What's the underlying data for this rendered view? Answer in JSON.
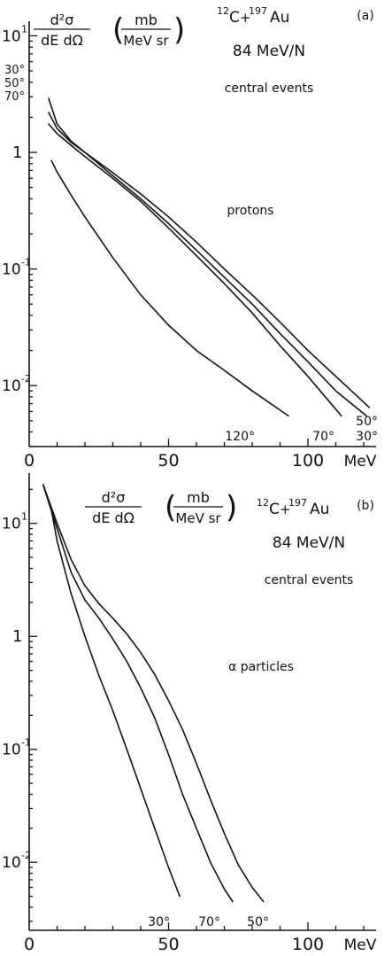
{
  "chart_data": [
    {
      "panel": "(a)",
      "type": "line",
      "y_scale": "log",
      "ylim": [
        0.003,
        12
      ],
      "xlim": [
        0,
        125
      ],
      "x_ticks": [
        "0",
        "50",
        "100"
      ],
      "x_tick_values": [
        0,
        50,
        100
      ],
      "x_unit": "MeV",
      "y_ticks": [
        {
          "value": 10,
          "base": "10",
          "exp": "1"
        },
        {
          "value": 1,
          "base": "1",
          "exp": ""
        },
        {
          "value": 0.1,
          "base": "10",
          "exp": "-1"
        },
        {
          "value": 0.01,
          "base": "10",
          "exp": "-2"
        }
      ],
      "ylabel": {
        "num": "d²σ",
        "den": "dE dΩ",
        "unit_num": "mb",
        "unit_den": "MeV sr"
      },
      "reaction": {
        "a_left": "12",
        "p1": "C",
        "plus": "+",
        "a_right": "197",
        "p2": "Au"
      },
      "energy": "84 MeV/N",
      "selection": "central events",
      "particle": "protons",
      "series": [
        {
          "name": "30°",
          "x": [
            7,
            10,
            15,
            20,
            30,
            40,
            50,
            60,
            70,
            80,
            90,
            100,
            110,
            121
          ],
          "y": [
            2.9,
            1.75,
            1.25,
            1.0,
            0.63,
            0.4,
            0.245,
            0.145,
            0.085,
            0.05,
            0.028,
            0.016,
            0.009,
            0.0055
          ]
        },
        {
          "name": "50°",
          "x": [
            7,
            10,
            15,
            20,
            30,
            40,
            50,
            60,
            70,
            80,
            90,
            100,
            110,
            122
          ],
          "y": [
            2.2,
            1.6,
            1.22,
            1.0,
            0.67,
            0.44,
            0.28,
            0.17,
            0.1,
            0.06,
            0.035,
            0.02,
            0.012,
            0.0065
          ]
        },
        {
          "name": "70°",
          "x": [
            7,
            10,
            15,
            20,
            30,
            40,
            50,
            60,
            70,
            80,
            90,
            100,
            112
          ],
          "y": [
            1.75,
            1.45,
            1.15,
            0.92,
            0.6,
            0.38,
            0.225,
            0.13,
            0.075,
            0.042,
            0.022,
            0.012,
            0.0055
          ]
        },
        {
          "name": "120°",
          "x": [
            8,
            10,
            15,
            20,
            30,
            40,
            50,
            60,
            70,
            80,
            93
          ],
          "y": [
            0.85,
            0.68,
            0.43,
            0.28,
            0.125,
            0.06,
            0.033,
            0.02,
            0.0135,
            0.009,
            0.0055
          ]
        }
      ]
    },
    {
      "panel": "(b)",
      "type": "line",
      "y_scale": "log",
      "ylim": [
        0.0025,
        25
      ],
      "xlim": [
        0,
        125
      ],
      "x_ticks": [
        "0",
        "50",
        "100"
      ],
      "x_tick_values": [
        0,
        50,
        100
      ],
      "x_unit": "MeV",
      "y_ticks": [
        {
          "value": 10,
          "base": "10",
          "exp": "1"
        },
        {
          "value": 1,
          "base": "1",
          "exp": ""
        },
        {
          "value": 0.1,
          "base": "10",
          "exp": "-1"
        },
        {
          "value": 0.01,
          "base": "10",
          "exp": "-2"
        }
      ],
      "ylabel": {
        "num": "d²σ",
        "den": "dE dΩ",
        "unit_num": "mb",
        "unit_den": "MeV sr"
      },
      "reaction": {
        "a_left": "12",
        "p1": "C",
        "plus": "+",
        "a_right": "197",
        "p2": "Au"
      },
      "energy": "84 MeV/N",
      "selection": "central events",
      "particle": "α particles",
      "series": [
        {
          "name": "30°",
          "x": [
            5,
            8,
            10,
            15,
            20,
            25,
            30,
            35,
            40,
            45,
            50,
            54
          ],
          "y": [
            22,
            13,
            7,
            2.4,
            1.0,
            0.45,
            0.22,
            0.1,
            0.045,
            0.02,
            0.009,
            0.005
          ]
        },
        {
          "name": "70°",
          "x": [
            5,
            10,
            15,
            20,
            25,
            30,
            35,
            40,
            45,
            50,
            55,
            60,
            65,
            70,
            73
          ],
          "y": [
            22,
            9,
            3.7,
            2.1,
            1.45,
            0.95,
            0.6,
            0.35,
            0.19,
            0.09,
            0.04,
            0.02,
            0.01,
            0.0058,
            0.0045
          ]
        },
        {
          "name": "50°",
          "x": [
            5,
            10,
            15,
            20,
            25,
            30,
            35,
            40,
            45,
            50,
            55,
            60,
            65,
            70,
            75,
            80,
            84
          ],
          "y": [
            22,
            10,
            4.8,
            2.8,
            1.95,
            1.45,
            1.05,
            0.72,
            0.46,
            0.27,
            0.15,
            0.075,
            0.036,
            0.018,
            0.0095,
            0.006,
            0.0045
          ]
        }
      ]
    }
  ]
}
